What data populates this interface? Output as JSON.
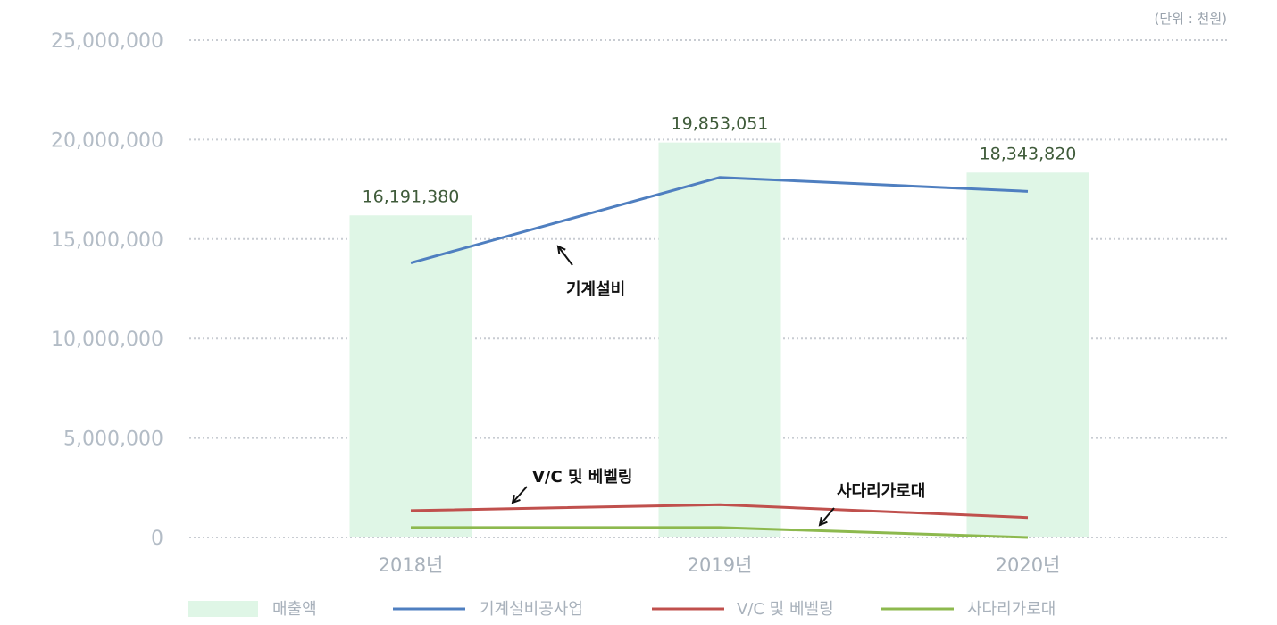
{
  "unit_note": "(단위 : 천원)",
  "colors": {
    "bar": "#dff6e6",
    "grid": "#c8ccd2",
    "series_machine": "#4f7fc0",
    "series_vc": "#c0504d",
    "series_ladder": "#8db94e"
  },
  "chart_data": {
    "type": "bar+line",
    "categories": [
      "2018년",
      "2019년",
      "2020년"
    ],
    "ylim": [
      0,
      25000000
    ],
    "yticks": [
      0,
      5000000,
      10000000,
      15000000,
      20000000,
      25000000
    ],
    "ytick_labels": [
      "0",
      "5,000,000",
      "10,000,000",
      "15,000,000",
      "20,000,000",
      "25,000,000"
    ],
    "grid": "horizontal dotted",
    "legend_position": "bottom",
    "series": [
      {
        "name": "매출액",
        "kind": "bar",
        "values": [
          16191380,
          19853051,
          18343820
        ],
        "labels": [
          "16,191,380",
          "19,853,051",
          "18,343,820"
        ]
      },
      {
        "name": "기계설비공사업",
        "kind": "line",
        "values": [
          13800000,
          18100000,
          17400000
        ]
      },
      {
        "name": "V/C 및 베벨링",
        "kind": "line",
        "values": [
          1350000,
          1650000,
          1000000
        ]
      },
      {
        "name": "사다리가로대",
        "kind": "line",
        "values": [
          500000,
          500000,
          0
        ]
      }
    ],
    "annotations": [
      {
        "text": "기계설비",
        "arrow": "up-left"
      },
      {
        "text": "V/C 및 베벨링",
        "arrow": "down-left"
      },
      {
        "text": "사다리가로대",
        "arrow": "down-left"
      }
    ]
  }
}
